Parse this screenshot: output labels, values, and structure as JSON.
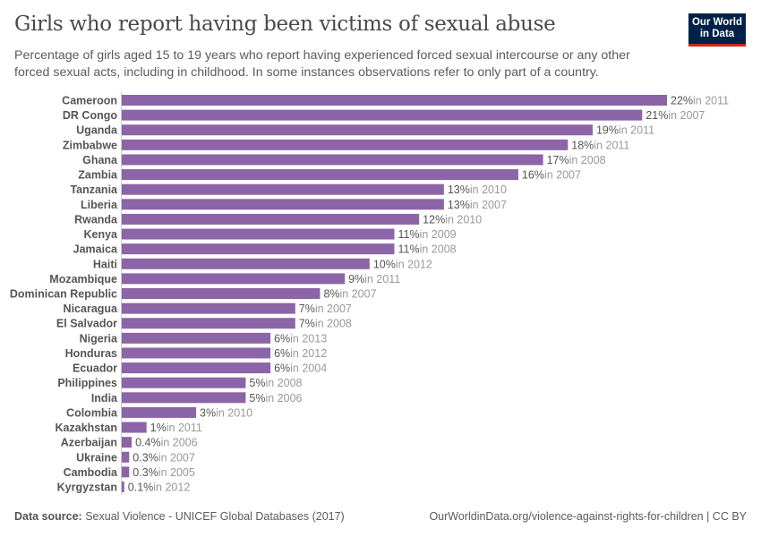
{
  "title": "Girls who report having been victims of sexual abuse",
  "subtitle": "Percentage of girls aged 15 to 19 years who report having experienced forced sexual intercourse or any other forced sexual acts, including in childhood. In some instances observations refer to only part of a country.",
  "logo": {
    "line1": "Our World",
    "line2": "in Data"
  },
  "footer": {
    "source_label": "Data source:",
    "source": "Sexual Violence - UNICEF Global Databases (2017)",
    "url": "OurWorldinData.org/violence-against-rights-for-children | CC BY"
  },
  "colors": {
    "bar": "#8c64a8",
    "logo_bg": "#002147",
    "logo_accent": "#ce261e"
  },
  "chart_data": {
    "type": "bar",
    "orientation": "horizontal",
    "unit": "%",
    "categories": [
      "Cameroon",
      "DR Congo",
      "Uganda",
      "Zimbabwe",
      "Ghana",
      "Zambia",
      "Tanzania",
      "Liberia",
      "Rwanda",
      "Kenya",
      "Jamaica",
      "Haiti",
      "Mozambique",
      "Dominican Republic",
      "Nicaragua",
      "El Salvador",
      "Nigeria",
      "Honduras",
      "Ecuador",
      "Philippines",
      "India",
      "Colombia",
      "Kazakhstan",
      "Azerbaijan",
      "Ukraine",
      "Cambodia",
      "Kyrgyzstan"
    ],
    "values": [
      22,
      21,
      19,
      18,
      17,
      16,
      13,
      13,
      12,
      11,
      11,
      10,
      9,
      8,
      7,
      7,
      6,
      6,
      6,
      5,
      5,
      3,
      1,
      0.4,
      0.3,
      0.3,
      0.1
    ],
    "value_labels": [
      "22%",
      "21%",
      "19%",
      "18%",
      "17%",
      "16%",
      "13%",
      "13%",
      "12%",
      "11%",
      "11%",
      "10%",
      "9%",
      "8%",
      "7%",
      "7%",
      "6%",
      "6%",
      "6%",
      "5%",
      "5%",
      "3%",
      "1%",
      "0.4%",
      "0.3%",
      "0.3%",
      "0.1%"
    ],
    "years": [
      "in 2011",
      "in 2007",
      "in 2011",
      "in 2011",
      "in 2008",
      "in 2007",
      "in 2010",
      "in 2007",
      "in 2010",
      "in 2009",
      "in 2008",
      "in 2012",
      "in 2011",
      "in 2007",
      "in 2007",
      "in 2008",
      "in 2013",
      "in 2012",
      "in 2004",
      "in 2008",
      "in 2006",
      "in 2010",
      "in 2011",
      "in 2006",
      "in 2007",
      "in 2005",
      "in 2012"
    ],
    "xlim": [
      0,
      22
    ],
    "grid": false
  }
}
